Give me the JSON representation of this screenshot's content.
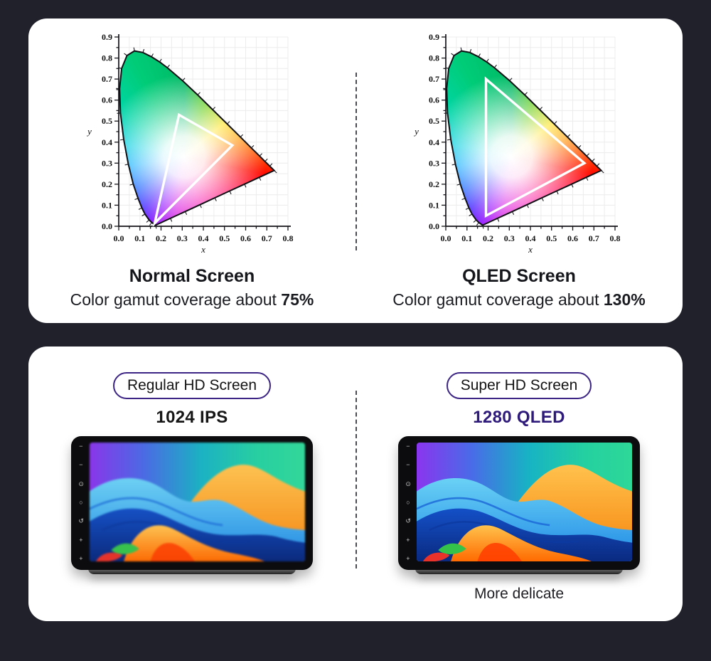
{
  "page": {
    "background": "#20212a",
    "card_color": "#ffffff"
  },
  "gamut_section": {
    "left": {
      "title": "Normal Screen",
      "subtitle_prefix": "Color gamut coverage about ",
      "coverage": "75%"
    },
    "right": {
      "title": "QLED Screen",
      "subtitle_prefix": "Color gamut coverage about ",
      "coverage": "130%"
    }
  },
  "screen_section": {
    "badge_border_color": "#3d2585",
    "divider_color": "#4a4a52",
    "left": {
      "badge": "Regular HD Screen",
      "model": "1024 IPS",
      "model_color": "#161616"
    },
    "right": {
      "badge": "Super HD Screen",
      "model": "1280 QLED",
      "model_color": "#2e1a7a",
      "caption": "More delicate"
    },
    "bezel_icons": [
      {
        "name": "mic-hole-icon",
        "glyph": "−"
      },
      {
        "name": "mic-hole-icon",
        "glyph": "−"
      },
      {
        "name": "power-icon",
        "glyph": "⊙"
      },
      {
        "name": "home-icon",
        "glyph": "○"
      },
      {
        "name": "back-icon",
        "glyph": "↺"
      },
      {
        "name": "volume-up-icon",
        "glyph": "+"
      },
      {
        "name": "volume-down-icon",
        "glyph": "+"
      }
    ],
    "wallpaper": {
      "name": "abstract-waves-wallpaper",
      "palette": {
        "purple": "#8a35ee",
        "blue": "#4a6ae8",
        "teal": "#24d0a0",
        "orange_light": "#ffc24d",
        "orange": "#f5820b",
        "wave_light": "#6ad1f5",
        "wave_mid": "#1e88e5",
        "wave_dark": "#0a2a80",
        "blob": "#ff6a00",
        "green": "#35c24a",
        "red": "#e8322a"
      }
    }
  },
  "chart_data": [
    {
      "type": "area",
      "title": "Normal Screen",
      "subtitle": "Color gamut coverage about 75%",
      "xlabel": "x",
      "ylabel": "y",
      "xlim": [
        0,
        0.8
      ],
      "ylim": [
        0,
        0.9
      ],
      "xticks": [
        0,
        0.1,
        0.2,
        0.3,
        0.4,
        0.5,
        0.6,
        0.7,
        0.8
      ],
      "yticks": [
        0,
        0.1,
        0.2,
        0.3,
        0.4,
        0.5,
        0.6,
        0.7,
        0.8,
        0.9
      ],
      "minor_step": 0.05,
      "grid": true,
      "white_point": [
        0.31,
        0.33
      ],
      "gamut_triangle": [
        [
          0.17,
          0.015
        ],
        [
          0.285,
          0.53
        ],
        [
          0.537,
          0.385
        ]
      ],
      "boundary": [
        [
          0.1741,
          0.005
        ],
        [
          0.1566,
          0.0177
        ],
        [
          0.144,
          0.0297
        ],
        [
          0.1241,
          0.0578
        ],
        [
          0.1096,
          0.0868
        ],
        [
          0.0913,
          0.1327
        ],
        [
          0.0687,
          0.2007
        ],
        [
          0.0454,
          0.295
        ],
        [
          0.0235,
          0.4127
        ],
        [
          0.0082,
          0.5384
        ],
        [
          0.0039,
          0.6548
        ],
        [
          0.0139,
          0.7502
        ],
        [
          0.0389,
          0.812
        ],
        [
          0.0743,
          0.8338
        ],
        [
          0.1142,
          0.8262
        ],
        [
          0.1547,
          0.8059
        ],
        [
          0.1929,
          0.7816
        ],
        [
          0.2296,
          0.7543
        ],
        [
          0.3016,
          0.6923
        ],
        [
          0.3731,
          0.6245
        ],
        [
          0.4441,
          0.5547
        ],
        [
          0.5125,
          0.4866
        ],
        [
          0.5752,
          0.4242
        ],
        [
          0.627,
          0.3725
        ],
        [
          0.6658,
          0.334
        ],
        [
          0.6915,
          0.3083
        ],
        [
          0.714,
          0.2859
        ],
        [
          0.7347,
          0.2653
        ],
        [
          0.6646,
          0.2328
        ],
        [
          0.5946,
          0.2002
        ],
        [
          0.5245,
          0.1677
        ],
        [
          0.4544,
          0.1352
        ],
        [
          0.3843,
          0.1026
        ],
        [
          0.3143,
          0.0701
        ],
        [
          0.2442,
          0.0375
        ]
      ]
    },
    {
      "type": "area",
      "title": "QLED Screen",
      "subtitle": "Color gamut coverage about 130%",
      "xlabel": "x",
      "ylabel": "y",
      "xlim": [
        0,
        0.8
      ],
      "ylim": [
        0,
        0.9
      ],
      "xticks": [
        0,
        0.1,
        0.2,
        0.3,
        0.4,
        0.5,
        0.6,
        0.7,
        0.8
      ],
      "yticks": [
        0,
        0.1,
        0.2,
        0.3,
        0.4,
        0.5,
        0.6,
        0.7,
        0.8,
        0.9
      ],
      "minor_step": 0.05,
      "grid": true,
      "white_point": [
        0.31,
        0.33
      ],
      "gamut_triangle": [
        [
          0.19,
          0.05
        ],
        [
          0.19,
          0.7
        ],
        [
          0.655,
          0.3
        ]
      ],
      "boundary": [
        [
          0.1741,
          0.005
        ],
        [
          0.1566,
          0.0177
        ],
        [
          0.144,
          0.0297
        ],
        [
          0.1241,
          0.0578
        ],
        [
          0.1096,
          0.0868
        ],
        [
          0.0913,
          0.1327
        ],
        [
          0.0687,
          0.2007
        ],
        [
          0.0454,
          0.295
        ],
        [
          0.0235,
          0.4127
        ],
        [
          0.0082,
          0.5384
        ],
        [
          0.0039,
          0.6548
        ],
        [
          0.0139,
          0.7502
        ],
        [
          0.0389,
          0.812
        ],
        [
          0.0743,
          0.8338
        ],
        [
          0.1142,
          0.8262
        ],
        [
          0.1547,
          0.8059
        ],
        [
          0.1929,
          0.7816
        ],
        [
          0.2296,
          0.7543
        ],
        [
          0.3016,
          0.6923
        ],
        [
          0.3731,
          0.6245
        ],
        [
          0.4441,
          0.5547
        ],
        [
          0.5125,
          0.4866
        ],
        [
          0.5752,
          0.4242
        ],
        [
          0.627,
          0.3725
        ],
        [
          0.6658,
          0.334
        ],
        [
          0.6915,
          0.3083
        ],
        [
          0.714,
          0.2859
        ],
        [
          0.7347,
          0.2653
        ],
        [
          0.6646,
          0.2328
        ],
        [
          0.5946,
          0.2002
        ],
        [
          0.5245,
          0.1677
        ],
        [
          0.4544,
          0.1352
        ],
        [
          0.3843,
          0.1026
        ],
        [
          0.3143,
          0.0701
        ],
        [
          0.2442,
          0.0375
        ]
      ]
    }
  ]
}
